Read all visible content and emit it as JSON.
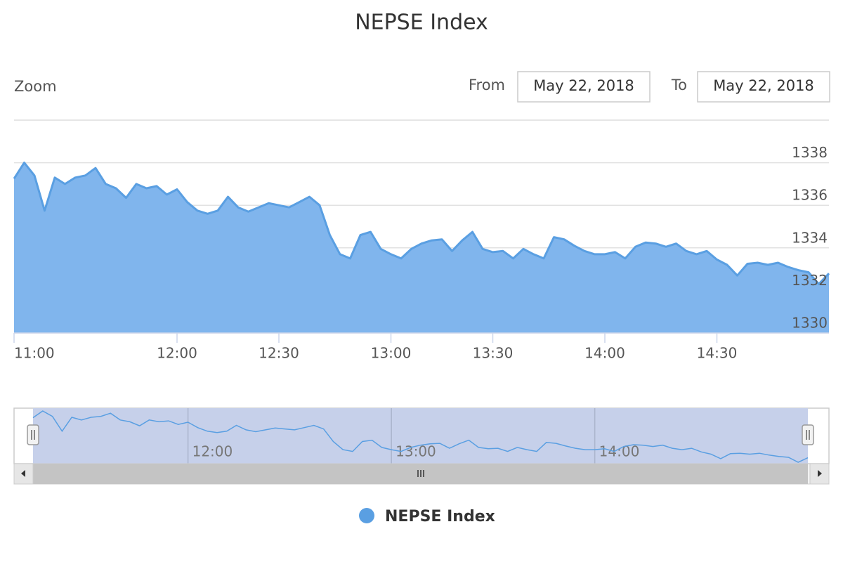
{
  "chart_data": {
    "type": "area",
    "title": "NEPSE Index",
    "range_selector": {
      "label": "Zoom",
      "from_label": "From",
      "from": "May 22, 2018",
      "to_label": "To",
      "to": "May 22, 2018"
    },
    "x": [
      "11:00",
      "11:04",
      "11:08",
      "11:11",
      "11:15",
      "11:19",
      "11:22",
      "11:26",
      "11:30",
      "11:34",
      "11:38",
      "11:41",
      "11:45",
      "11:49",
      "11:52",
      "11:56",
      "12:00",
      "12:03",
      "12:06",
      "12:09",
      "12:12",
      "12:15",
      "12:18",
      "12:21",
      "12:24",
      "12:27",
      "12:30",
      "12:33",
      "12:35",
      "12:38",
      "12:41",
      "12:44",
      "12:46",
      "12:49",
      "12:52",
      "12:55",
      "12:57",
      "13:00",
      "13:03",
      "13:06",
      "13:09",
      "13:12",
      "13:15",
      "13:18",
      "13:21",
      "13:24",
      "13:27",
      "13:30",
      "13:33",
      "13:35",
      "13:38",
      "13:41",
      "13:44",
      "13:46",
      "13:49",
      "13:52",
      "13:55",
      "13:57",
      "14:00",
      "14:03",
      "14:05",
      "14:08",
      "14:11",
      "14:14",
      "14:16",
      "14:19",
      "14:22",
      "14:25",
      "14:27",
      "14:30",
      "14:32",
      "14:35",
      "14:37",
      "14:39",
      "14:42",
      "14:44",
      "14:47",
      "14:49",
      "14:51",
      "14:54",
      "14:56"
    ],
    "series": [
      {
        "name": "NEPSE Index",
        "color": "#5a9fe2",
        "fill": "#80b5ed",
        "values": [
          1337.25,
          1338.0,
          1337.4,
          1335.75,
          1337.3,
          1337.0,
          1337.3,
          1337.4,
          1337.75,
          1337.0,
          1336.8,
          1336.35,
          1337.0,
          1336.8,
          1336.9,
          1336.5,
          1336.75,
          1336.15,
          1335.75,
          1335.6,
          1335.75,
          1336.4,
          1335.9,
          1335.7,
          1335.9,
          1336.1,
          1336.0,
          1335.9,
          1336.15,
          1336.4,
          1336.0,
          1334.6,
          1333.7,
          1333.5,
          1334.6,
          1334.75,
          1333.95,
          1333.7,
          1333.5,
          1333.95,
          1334.2,
          1334.35,
          1334.4,
          1333.85,
          1334.35,
          1334.75,
          1333.95,
          1333.8,
          1333.85,
          1333.5,
          1333.95,
          1333.7,
          1333.5,
          1334.5,
          1334.4,
          1334.1,
          1333.85,
          1333.7,
          1333.7,
          1333.8,
          1333.5,
          1334.05,
          1334.25,
          1334.2,
          1334.05,
          1334.2,
          1333.85,
          1333.7,
          1333.85,
          1333.45,
          1333.2,
          1332.7,
          1333.25,
          1333.3,
          1333.2,
          1333.3,
          1333.1,
          1332.95,
          1332.85,
          1332.3,
          1332.8
        ]
      }
    ],
    "ylim": [
      1330,
      1340
    ],
    "yticks": [
      1330,
      1332,
      1334,
      1336,
      1338
    ],
    "xticks": [
      "11:00",
      "12:00",
      "12:30",
      "13:00",
      "13:30",
      "14:00",
      "14:30"
    ],
    "grid": true,
    "legend": "bottom"
  }
}
